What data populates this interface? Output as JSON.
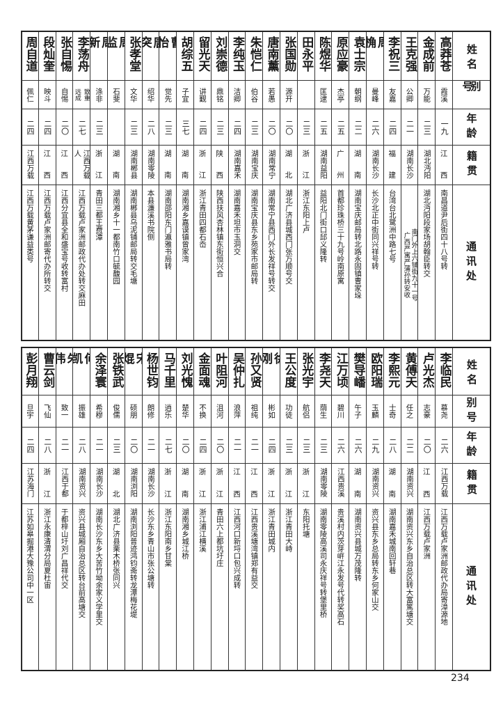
{
  "headers": {
    "name": "姓名",
    "alias": "别号",
    "age": "年龄",
    "native": "籍贯",
    "address": "通讯处"
  },
  "top_table": [
    {
      "name": "高莽苍",
      "alias": "霞溪",
      "age": "一九",
      "native": "江西",
      "address": "南昌道尹后街四十八号转"
    },
    {
      "name": "金成前",
      "alias": "万能",
      "age": "二三",
      "native": "湖北沔阳",
      "address": "湖北沔阳段家场胡翰臣转交"
    },
    {
      "name": "王克强",
      "alias": "公卿",
      "age": "二一",
      "native": "湖南长沙",
      "address": [
        "南门外上六铺街九十一号",
        "广西严寓严蒲孙转安收"
      ]
    },
    {
      "name": "李祝三",
      "alias": "友嘉",
      "age": "二四",
      "native": "福建",
      "address": "台湾台北鹭洲中路七号"
    },
    {
      "name": "周桷",
      "alias": "曼峰",
      "age": "二六",
      "native": "湖南长沙",
      "address": "长沙北正中街同兴祥号转"
    },
    {
      "name": "袁士宗",
      "alias": "朝纲",
      "age": "二二",
      "native": "湖南",
      "address": "湖南宝庆邮局转北路永固镇曹家垛"
    },
    {
      "name": "原应豪",
      "alias": "杰亭",
      "age": "二五",
      "native": "广州",
      "address": "首都珍珠桥三十九号岭南原寓"
    },
    {
      "name": "陈煜华",
      "alias": "匡逮",
      "age": "二五",
      "native": "湖南益阳",
      "address": "益阳北门街口邱义隆转"
    },
    {
      "name": "田永平",
      "alias": "",
      "age": "二三",
      "native": "浙江",
      "address": "浙江东阳上卢"
    },
    {
      "name": "张国勋",
      "alias": "源开",
      "age": "二〇",
      "native": "湖北",
      "address": "湖北广济县城西门张万顺号交"
    },
    {
      "name": "唐南薰",
      "alias": "若愚",
      "age": "二〇",
      "native": "湖南常宁",
      "address": "湖南常宁县西门外长发祥号转交"
    },
    {
      "name": "朱恺仁",
      "alias": "伯谷",
      "age": "二三",
      "native": "湖南宝庆",
      "address": "湖南宝庆县东乡苑家市邮局转"
    },
    {
      "name": "李纯玉",
      "alias": "洁卿",
      "age": "二四",
      "native": "湖南嘉禾",
      "address": "湖南嘉禾坦市玉洞交"
    },
    {
      "name": "刘崇德",
      "alias": "鼎铭",
      "age": "二三",
      "native": "陕西",
      "address": "陕西扶风杏林镇东街恒兴合"
    },
    {
      "name": "留光天",
      "alias": "讲觐",
      "age": "二四",
      "native": "浙江",
      "address": "浙江青田四都石岙"
    },
    {
      "name": "胡综五",
      "alias": "子宜",
      "age": "三七",
      "native": "湖南",
      "address": "湖南湘乡嘉谟镇曾家湾"
    },
    {
      "name": "曹怡",
      "alias": "觉先",
      "age": "二三",
      "native": "湖南",
      "address": "湖南邵阳东门瀛雅书局转"
    },
    {
      "name": "唐突",
      "alias": "绍华",
      "age": "二八",
      "native": "湖南零陵",
      "address": "本县濂溪书院侧"
    },
    {
      "name": "张孝堂",
      "alias": "文华",
      "age": "二三",
      "native": "湖南郴县",
      "address": "湖南郴县乌泥铺邮局转交毛塘"
    },
    {
      "name": "周监",
      "alias": "石斐",
      "age": "",
      "native": "湖南",
      "address": "湖南湘乡十一都南竹口毓馥园"
    },
    {
      "name": "周新",
      "alias": "涤非",
      "age": "二三",
      "native": "浙江",
      "address": "青田三都王费潭"
    },
    {
      "name": "李荡舟",
      "alias": [
        "致重",
        "远成"
      ],
      "age": "二七",
      "native": "江西万载人",
      "address": "江西万载卢家洲邮政代办处转交麻田"
    },
    {
      "name": "张自惕",
      "alias": "自惕",
      "age": "二〇",
      "native": "江西",
      "address": "江西分宜县全和盛宝号收转富村"
    },
    {
      "name": "段灿奎",
      "alias": "映斗",
      "age": "二四",
      "native": "江西",
      "address": "江西万载卢家洲邮寄代办所转交"
    },
    {
      "name": "周自道",
      "alias": "佩仁",
      "age": "二四",
      "native": "江西万载",
      "address": "江西万载黄茅谦益类号"
    }
  ],
  "bottom_table": [
    {
      "name": "李临民",
      "alias": "慕尧",
      "age": "二六",
      "native": "江西万载",
      "address": "江西万载卢家洲邮政代办局寄漳源地"
    },
    {
      "name": "卢光杰",
      "alias": "志豪",
      "age": "二〇",
      "native": "江西",
      "address": "江西万载卢家洲"
    },
    {
      "name": "黄傅天",
      "alias": "任之",
      "age": "二二",
      "native": "湖南资兴",
      "address": "湖南资兴东乡自治总区转大富篤塘交"
    },
    {
      "name": "李熙元",
      "alias": "士奇",
      "age": "二八",
      "native": "湖南",
      "address": "湖南嘉禾城南回轩巷"
    },
    {
      "name": "欧阳瑞",
      "alias": "玉麟",
      "age": "二九",
      "native": "湖南资兴",
      "address": "资兴县东乡总局转东乡何家山交"
    },
    {
      "name": "樊导嶓",
      "alias": "午子",
      "age": "二六",
      "native": "湖南",
      "address": "湖南资兴县城万茂隆转"
    },
    {
      "name": "江万顷",
      "alias": "碧川",
      "age": "二六",
      "native": "江西贵溪",
      "address": "贵溪村内茨芽㟁江永发号代转奖高石"
    },
    {
      "name": "李尧天",
      "alias": "荫生",
      "age": "二三",
      "native": "湖南零陵",
      "address": "湖南零陵高溪司永庆祥号转堡里桥"
    },
    {
      "name": "张光宇",
      "alias": "航侣",
      "age": "二三",
      "native": "浙江",
      "address": "东阳托塘"
    },
    {
      "name": "王公度",
      "alias": "功徒",
      "age": "二三",
      "native": "浙江",
      "address": "浙江青田大峙"
    },
    {
      "name": "徐刚",
      "alias": "彬如",
      "age": "二四",
      "native": "浙江",
      "address": "浙江青田城内"
    },
    {
      "name": "孙又贤",
      "alias": "祖纯",
      "age": "二一",
      "native": "江西",
      "address": "江西贵溪塘湾镇郑有益交"
    },
    {
      "name": "吴仲扎",
      "alias": "浪萍",
      "age": "二一",
      "native": "江西",
      "address": "江西河口新埒口包兴成转"
    },
    {
      "name": "叶阻河",
      "alias": "沮河",
      "age": "二〇",
      "native": "浙江",
      "address": "青田六上都坑圩庄"
    },
    {
      "name": "金面魂",
      "alias": "不换",
      "age": "二四",
      "native": "浙江",
      "address": "浙江浦江横溪"
    },
    {
      "name": "刘光愧",
      "alias": "楚华",
      "age": "二〇",
      "native": "湖南",
      "address": "湖南湘乡城江桥"
    },
    {
      "name": "马千里",
      "alias": "逍乐",
      "age": "二七",
      "native": "浙江",
      "address": "浙江东阳南乡甘棠"
    },
    {
      "name": "杨世钧",
      "alias": "朗修",
      "age": "二一",
      "native": "湖南长沙",
      "address": "长沙东乡青山市张公塘转"
    },
    {
      "name": "宋焜",
      "alias": "硕朋",
      "age": "二〇",
      "native": "湖南浏阳",
      "address": "湖南浏阳普迹鸿钧斋转龙潭梅花堤"
    },
    {
      "name": "张铁武",
      "alias": "俊儒",
      "age": "二三",
      "native": "湖北",
      "address": "湖北广济县栗木桥张同兴"
    },
    {
      "name": "余泽寰",
      "alias": "希穆",
      "age": "二一",
      "native": "湖南长沙",
      "address": "湖南长沙东乡大苦竹坳余家义学里交"
    },
    {
      "name": "何凯",
      "alias": "振雄",
      "age": "二八",
      "native": "湖南资兴",
      "address": "资兴县城厢自治总区转台前高塘交"
    },
    {
      "name": "朱伟",
      "alias": "致一",
      "age": "二一",
      "native": "江西于都",
      "address": "于都梓山圩刘广昌祥代交"
    },
    {
      "name": "曹云剑",
      "alias": "飞仙",
      "age": "二八",
      "native": "浙江",
      "address": "浙江永康清渭分局夏杜宙"
    },
    {
      "name": "彭月翔",
      "alias": "旦宇",
      "age": "二四",
      "native": "江苏海门",
      "address": "江苏如皋掘港大豫公司中一区"
    }
  ],
  "page_number": "234"
}
